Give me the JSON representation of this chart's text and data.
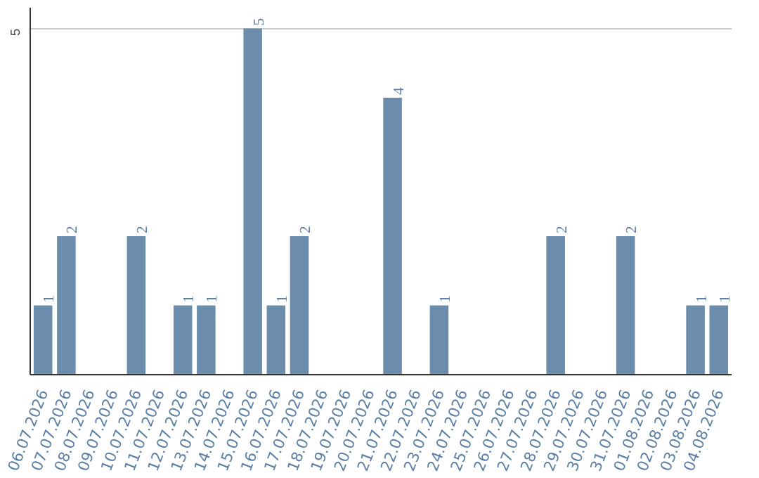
{
  "chart_data": {
    "type": "bar",
    "categories": [
      "06.07.2026",
      "07.07.2026",
      "08.07.2026",
      "09.07.2026",
      "10.07.2026",
      "11.07.2026",
      "12.07.2026",
      "13.07.2026",
      "14.07.2026",
      "15.07.2026",
      "16.07.2026",
      "17.07.2026",
      "18.07.2026",
      "19.07.2026",
      "20.07.2026",
      "21.07.2026",
      "22.07.2026",
      "23.07.2026",
      "24.07.2026",
      "25.07.2026",
      "26.07.2026",
      "27.07.2026",
      "28.07.2026",
      "29.07.2026",
      "30.07.2026",
      "31.07.2026",
      "01.08.2026",
      "02.08.2026",
      "03.08.2026",
      "04.08.2026"
    ],
    "values": [
      1,
      2,
      0,
      0,
      2,
      0,
      1,
      1,
      0,
      5,
      1,
      2,
      0,
      0,
      0,
      4,
      0,
      1,
      0,
      0,
      0,
      0,
      2,
      0,
      0,
      2,
      0,
      0,
      1,
      1
    ],
    "value_labels": [
      "1",
      "2",
      null,
      null,
      "2",
      null,
      "1",
      "1",
      null,
      "5",
      "1",
      "2",
      null,
      null,
      null,
      "4",
      null,
      "1",
      null,
      null,
      null,
      null,
      "2",
      null,
      null,
      "2",
      null,
      null,
      "1",
      "1"
    ],
    "color": "#6b8caa",
    "ylim": [
      0,
      5.3
    ],
    "yticks": [
      5
    ],
    "grid": "y"
  }
}
